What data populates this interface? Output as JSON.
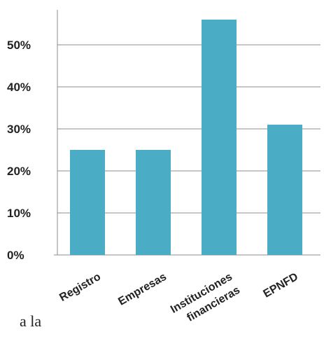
{
  "chart_data": {
    "type": "bar",
    "categories": [
      "Registro",
      "Empresas",
      "Instituciones\nfinancieras",
      "EPNFD"
    ],
    "values": [
      25,
      25,
      56,
      31
    ],
    "yticks": [
      "0%",
      "10%",
      "20%",
      "30%",
      "40%",
      "50%"
    ],
    "ylim": [
      0,
      60
    ],
    "grid": true,
    "colors": {
      "bar": "#4bacc6",
      "grid": "#8c8c8c",
      "axis": "#8c8c8c",
      "text": "#222222"
    }
  },
  "page_fragments": {
    "left_text": "a la"
  }
}
